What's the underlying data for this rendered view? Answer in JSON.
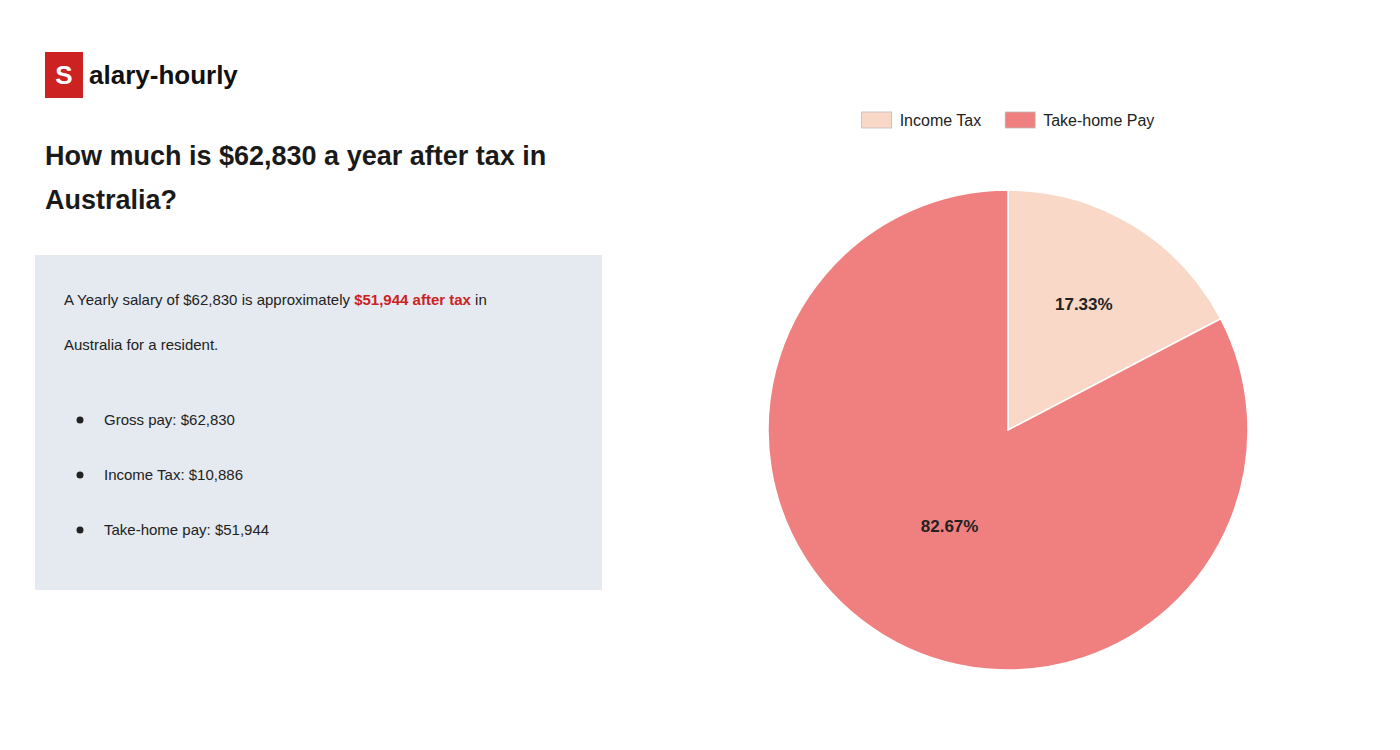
{
  "chart_data": {
    "type": "pie",
    "title": [
      "How much is $62,830 a year after tax in",
      "Australia?"
    ],
    "annotations": [
      "S",
      "alary-hourly",
      "A Yearly salary of $62,830 is approximately ",
      "$51,944 after tax",
      " in",
      "Australia for a resident.",
      "Gross pay: $62,830",
      "Income Tax: $10,886",
      "Take-home pay: $51,944"
    ],
    "categories": [
      "Income Tax",
      "Take-home Pay"
    ],
    "values": [
      17.33,
      82.67
    ],
    "value_labels": [
      "17.33%",
      "82.67%"
    ],
    "colors": [
      "#f9d8c8",
      "#f08080"
    ],
    "data_labels": true,
    "legend": "top"
  }
}
